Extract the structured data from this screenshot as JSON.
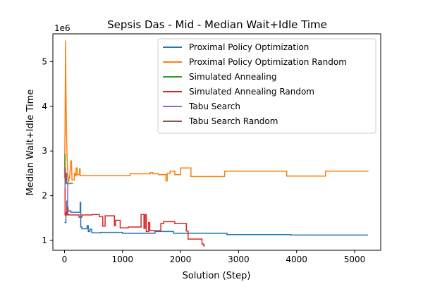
{
  "chart_data": {
    "type": "line",
    "title": "Sepsis Das - Mid - Median Wait+Idle Time",
    "xlabel": "Solution (Step)",
    "ylabel": "Median Wait+Idle Time",
    "y_scale_label": "1e6",
    "xlim": [
      -200,
      5450
    ],
    "ylim": [
      0.78,
      5.62
    ],
    "x_ticks": [
      0,
      1000,
      2000,
      3000,
      4000,
      5000
    ],
    "x_tick_labels": [
      "0",
      "1000",
      "2000",
      "3000",
      "4000",
      "5000"
    ],
    "y_ticks": [
      1,
      2,
      3,
      4,
      5
    ],
    "y_tick_labels": [
      "1",
      "2",
      "3",
      "4",
      "5"
    ],
    "grid": false,
    "legend_position": "top-right",
    "series": [
      {
        "name": "Proximal Policy Optimization",
        "color": "#1f77b4",
        "points": [
          [
            0,
            1.4
          ],
          [
            25,
            1.4
          ],
          [
            25,
            1.63
          ],
          [
            40,
            1.63
          ],
          [
            40,
            1.88
          ],
          [
            45,
            1.88
          ],
          [
            45,
            1.66
          ],
          [
            110,
            1.66
          ],
          [
            110,
            1.63
          ],
          [
            270,
            1.63
          ],
          [
            270,
            1.85
          ],
          [
            280,
            1.85
          ],
          [
            280,
            1.3
          ],
          [
            300,
            1.3
          ],
          [
            300,
            1.26
          ],
          [
            390,
            1.26
          ],
          [
            390,
            1.33
          ],
          [
            410,
            1.33
          ],
          [
            410,
            1.2
          ],
          [
            440,
            1.2
          ],
          [
            440,
            1.25
          ],
          [
            470,
            1.25
          ],
          [
            470,
            1.17
          ],
          [
            620,
            1.17
          ],
          [
            620,
            1.18
          ],
          [
            1000,
            1.18
          ],
          [
            1000,
            1.16
          ],
          [
            1560,
            1.16
          ],
          [
            1560,
            1.2
          ],
          [
            1880,
            1.2
          ],
          [
            1880,
            1.16
          ],
          [
            2800,
            1.16
          ],
          [
            2800,
            1.13
          ],
          [
            3900,
            1.13
          ],
          [
            3900,
            1.12
          ],
          [
            5230,
            1.12
          ]
        ]
      },
      {
        "name": "Proximal Policy Optimization Random",
        "color": "#ff7f0e",
        "points": [
          [
            0,
            2.4
          ],
          [
            10,
            3.5
          ],
          [
            18,
            5.47
          ],
          [
            25,
            4.4
          ],
          [
            35,
            3.4
          ],
          [
            45,
            2.85
          ],
          [
            55,
            2.5
          ],
          [
            70,
            2.3
          ],
          [
            90,
            2.45
          ],
          [
            100,
            2.6
          ],
          [
            110,
            2.78
          ],
          [
            120,
            2.78
          ],
          [
            130,
            2.35
          ],
          [
            170,
            2.35
          ],
          [
            170,
            2.5
          ],
          [
            190,
            2.5
          ],
          [
            190,
            2.45
          ],
          [
            200,
            2.45
          ],
          [
            200,
            2.62
          ],
          [
            220,
            2.62
          ],
          [
            220,
            2.47
          ],
          [
            260,
            2.47
          ],
          [
            260,
            2.6
          ],
          [
            270,
            2.6
          ],
          [
            270,
            2.45
          ],
          [
            1130,
            2.45
          ],
          [
            1130,
            2.49
          ],
          [
            1480,
            2.49
          ],
          [
            1480,
            2.52
          ],
          [
            1520,
            2.52
          ],
          [
            1520,
            2.49
          ],
          [
            1620,
            2.49
          ],
          [
            1620,
            2.47
          ],
          [
            1750,
            2.47
          ],
          [
            1750,
            2.33
          ],
          [
            1770,
            2.33
          ],
          [
            1770,
            2.5
          ],
          [
            1820,
            2.5
          ],
          [
            1820,
            2.55
          ],
          [
            1900,
            2.55
          ],
          [
            1900,
            2.47
          ],
          [
            2000,
            2.47
          ],
          [
            2000,
            2.62
          ],
          [
            2180,
            2.62
          ],
          [
            2180,
            2.43
          ],
          [
            2760,
            2.43
          ],
          [
            2760,
            2.55
          ],
          [
            3830,
            2.55
          ],
          [
            3830,
            2.44
          ],
          [
            4500,
            2.44
          ],
          [
            4500,
            2.55
          ],
          [
            5240,
            2.55
          ]
        ]
      },
      {
        "name": "Simulated Annealing",
        "color": "#2ca02c",
        "points": [
          [
            0,
            2.92
          ],
          [
            10,
            2.92
          ],
          [
            10,
            2.3
          ],
          [
            20,
            2.3
          ],
          [
            20,
            2.35
          ],
          [
            30,
            2.35
          ],
          [
            30,
            2.27
          ],
          [
            100,
            2.27
          ],
          [
            100,
            2.28
          ],
          [
            150,
            2.28
          ]
        ]
      },
      {
        "name": "Simulated Annealing Random",
        "color": "#d62728",
        "points": [
          [
            0,
            2.62
          ],
          [
            10,
            2.62
          ],
          [
            10,
            1.57
          ],
          [
            40,
            1.57
          ],
          [
            40,
            1.75
          ],
          [
            60,
            1.75
          ],
          [
            60,
            1.57
          ],
          [
            250,
            1.57
          ],
          [
            250,
            1.52
          ],
          [
            300,
            1.52
          ],
          [
            300,
            1.57
          ],
          [
            480,
            1.57
          ],
          [
            480,
            1.58
          ],
          [
            600,
            1.58
          ],
          [
            600,
            1.53
          ],
          [
            660,
            1.53
          ],
          [
            660,
            1.32
          ],
          [
            700,
            1.32
          ],
          [
            700,
            1.55
          ],
          [
            810,
            1.55
          ],
          [
            810,
            1.55
          ],
          [
            860,
            1.55
          ],
          [
            860,
            1.33
          ],
          [
            880,
            1.33
          ],
          [
            880,
            1.45
          ],
          [
            960,
            1.45
          ],
          [
            960,
            1.28
          ],
          [
            1100,
            1.28
          ],
          [
            1100,
            1.3
          ],
          [
            1320,
            1.3
          ],
          [
            1320,
            1.58
          ],
          [
            1370,
            1.58
          ],
          [
            1370,
            1.27
          ],
          [
            1390,
            1.27
          ],
          [
            1390,
            1.58
          ],
          [
            1410,
            1.58
          ],
          [
            1410,
            1.2
          ],
          [
            1450,
            1.2
          ],
          [
            1450,
            1.4
          ],
          [
            1470,
            1.4
          ],
          [
            1470,
            1.22
          ],
          [
            1660,
            1.22
          ],
          [
            1660,
            1.38
          ],
          [
            1710,
            1.38
          ],
          [
            1710,
            1.42
          ],
          [
            1900,
            1.42
          ],
          [
            1900,
            1.38
          ],
          [
            2100,
            1.38
          ],
          [
            2100,
            1.21
          ],
          [
            2130,
            1.21
          ],
          [
            2130,
            1.03
          ],
          [
            2370,
            1.03
          ],
          [
            2370,
            0.92
          ],
          [
            2400,
            0.92
          ],
          [
            2400,
            0.88
          ],
          [
            2420,
            0.88
          ]
        ]
      },
      {
        "name": "Tabu Search",
        "color": "#9467bd",
        "points": [
          [
            0,
            2.18
          ],
          [
            10,
            2.18
          ],
          [
            10,
            2.6
          ],
          [
            20,
            2.6
          ],
          [
            20,
            2.5
          ],
          [
            40,
            2.5
          ],
          [
            40,
            2.3
          ],
          [
            55,
            2.3
          ],
          [
            55,
            1.73
          ],
          [
            65,
            1.73
          ],
          [
            65,
            1.66
          ],
          [
            80,
            1.66
          ]
        ]
      },
      {
        "name": "Tabu Search Random",
        "color": "#8c564b",
        "points": [
          [
            0,
            2.52
          ],
          [
            12,
            2.52
          ],
          [
            12,
            2.35
          ],
          [
            25,
            2.35
          ],
          [
            25,
            2.48
          ],
          [
            32,
            2.48
          ]
        ]
      }
    ]
  }
}
